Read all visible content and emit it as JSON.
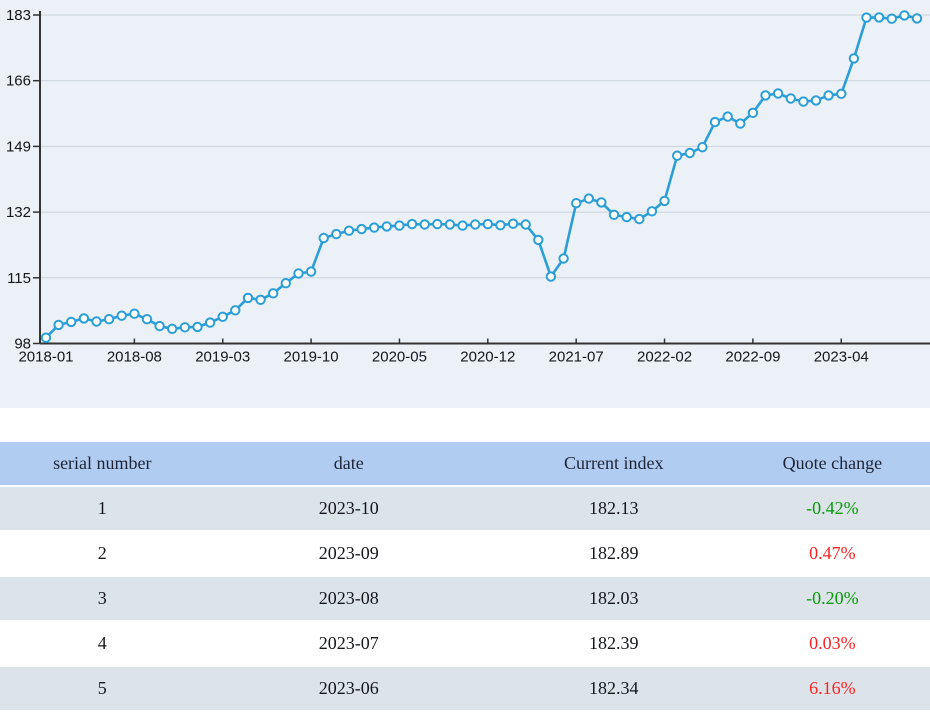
{
  "chart_data": {
    "type": "line",
    "title": "",
    "xlabel": "",
    "ylabel": "",
    "legend": "none",
    "grid": true,
    "ylim": [
      98,
      183
    ],
    "y_ticks": [
      98,
      115,
      132,
      149,
      166,
      183
    ],
    "x_tick_labels": [
      "2018-01",
      "2018-08",
      "2019-03",
      "2019-10",
      "2020-05",
      "2020-12",
      "2021-07",
      "2022-02",
      "2022-09",
      "2023-04"
    ],
    "x_tick_indices": [
      0,
      7,
      14,
      21,
      28,
      35,
      42,
      49,
      56,
      63
    ],
    "x": [
      "2018-01",
      "2018-02",
      "2018-03",
      "2018-04",
      "2018-05",
      "2018-06",
      "2018-07",
      "2018-08",
      "2018-09",
      "2018-10",
      "2018-11",
      "2018-12",
      "2019-01",
      "2019-02",
      "2019-03",
      "2019-04",
      "2019-05",
      "2019-06",
      "2019-07",
      "2019-08",
      "2019-09",
      "2019-10",
      "2019-11",
      "2019-12",
      "2020-01",
      "2020-02",
      "2020-03",
      "2020-04",
      "2020-05",
      "2020-06",
      "2020-07",
      "2020-08",
      "2020-09",
      "2020-10",
      "2020-11",
      "2020-12",
      "2021-01",
      "2021-02",
      "2021-03",
      "2021-04",
      "2021-05",
      "2021-06",
      "2021-07",
      "2021-08",
      "2021-09",
      "2021-10",
      "2021-11",
      "2021-12",
      "2022-01",
      "2022-02",
      "2022-03",
      "2022-04",
      "2022-05",
      "2022-06",
      "2022-07",
      "2022-08",
      "2022-09",
      "2022-10",
      "2022-11",
      "2022-12",
      "2023-01",
      "2023-02",
      "2023-03",
      "2023-04",
      "2023-05",
      "2023-06",
      "2023-07",
      "2023-08",
      "2023-09",
      "2023-10"
    ],
    "series": [
      {
        "name": "Current index",
        "values": [
          99.5,
          102.8,
          103.6,
          104.5,
          103.7,
          104.3,
          105.2,
          105.7,
          104.3,
          102.5,
          101.8,
          102.2,
          102.3,
          103.4,
          104.9,
          106.6,
          109.8,
          109.3,
          111.0,
          113.6,
          116.1,
          116.6,
          125.3,
          126.3,
          127.2,
          127.6,
          128.0,
          128.3,
          128.5,
          128.9,
          128.8,
          128.9,
          128.8,
          128.5,
          128.8,
          128.9,
          128.6,
          129.0,
          128.8,
          124.8,
          115.3,
          120.0,
          134.3,
          135.5,
          134.5,
          131.3,
          130.7,
          130.2,
          132.2,
          134.9,
          146.6,
          147.3,
          148.8,
          155.3,
          156.7,
          154.9,
          157.7,
          162.2,
          162.7,
          161.4,
          160.6,
          160.9,
          162.2,
          162.6,
          171.76,
          182.34,
          182.39,
          182.03,
          182.89,
          182.13
        ]
      }
    ],
    "marker": "open-circle",
    "colors": {
      "line": "#2b9ed8",
      "marker_fill": "#ffffff",
      "plot_background": "#ecf1f8",
      "gridline": "#ccd3dc",
      "axis": "#333333",
      "tick_label": "#15171a"
    }
  },
  "table": {
    "headers": [
      "serial number",
      "date",
      "Current index",
      "Quote change"
    ],
    "rows": [
      {
        "serial": "1",
        "date": "2023-10",
        "index": "182.13",
        "change": "-0.42%",
        "change_color": "#089b08"
      },
      {
        "serial": "2",
        "date": "2023-09",
        "index": "182.89",
        "change": "0.47%",
        "change_color": "#fa2323"
      },
      {
        "serial": "3",
        "date": "2023-08",
        "index": "182.03",
        "change": "-0.20%",
        "change_color": "#089b08"
      },
      {
        "serial": "4",
        "date": "2023-07",
        "index": "182.39",
        "change": "0.03%",
        "change_color": "#fa2323"
      },
      {
        "serial": "5",
        "date": "2023-06",
        "index": "182.34",
        "change": "6.16%",
        "change_color": "#fa2323"
      }
    ],
    "colors": {
      "header_background": "#b1ccf1",
      "alt_row_background": "#dce4ea",
      "rise_text": "#fa2323",
      "fall_text": "#089b08"
    }
  }
}
